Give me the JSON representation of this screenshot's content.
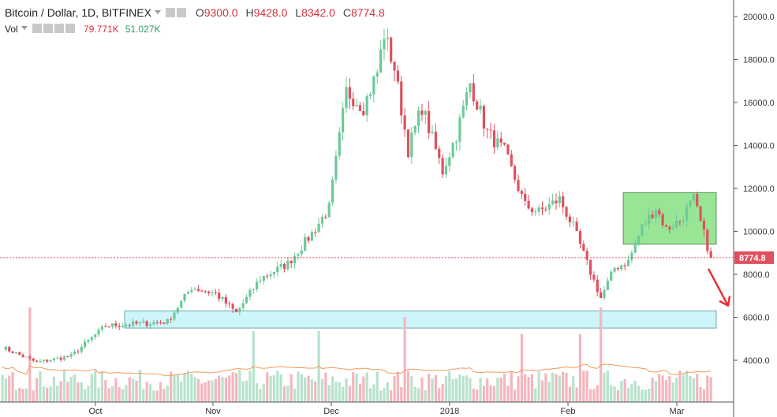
{
  "legend": {
    "title": "Bitcoin / Dollar, 1D, BITFINEX",
    "o_label": "O",
    "o_value": "9300.0",
    "h_label": "H",
    "h_value": "9428.0",
    "l_label": "L",
    "l_value": "8342.0",
    "c_label": "C",
    "c_value": "8774.8"
  },
  "volume_legend": {
    "label": "Vol",
    "value1": "79.771K",
    "value2": "51.027K"
  },
  "colors": {
    "up": "#6cc99a",
    "down": "#e0505e",
    "vol_up": "#b8e2cc",
    "vol_down": "#f4b6bd",
    "vol_ma": "#f29b5a",
    "last_price": "#e0505e",
    "support_zone": "#c8f4f9",
    "resistance_zone": "#7ee07a",
    "arrow": "#e8302f"
  },
  "chart_data": {
    "type": "candlestick",
    "symbol": "Bitcoin / Dollar",
    "interval": "1D",
    "exchange": "BITFINEX",
    "x_ticks": [
      "Oct",
      "Nov",
      "Dec",
      "2018",
      "Feb",
      "Mar"
    ],
    "y_ticks": [
      4000,
      6000,
      8000,
      10000,
      12000,
      14000,
      16000,
      18000,
      20000
    ],
    "ylim": [
      2800,
      20600
    ],
    "last_price": 8774.8,
    "last_price_label": "8774.8",
    "key_closes": [
      {
        "i": 0,
        "c": 4600
      },
      {
        "i": 10,
        "c": 3900
      },
      {
        "i": 20,
        "c": 4200
      },
      {
        "i": 30,
        "c": 5600
      },
      {
        "i": 40,
        "c": 5700
      },
      {
        "i": 48,
        "c": 5800
      },
      {
        "i": 55,
        "c": 7400
      },
      {
        "i": 62,
        "c": 7100
      },
      {
        "i": 68,
        "c": 6200
      },
      {
        "i": 75,
        "c": 7800
      },
      {
        "i": 83,
        "c": 8500
      },
      {
        "i": 90,
        "c": 9900
      },
      {
        "i": 95,
        "c": 11100
      },
      {
        "i": 100,
        "c": 16500
      },
      {
        "i": 105,
        "c": 15800
      },
      {
        "i": 109,
        "c": 17400
      },
      {
        "i": 111,
        "c": 19200
      },
      {
        "i": 114,
        "c": 17600
      },
      {
        "i": 118,
        "c": 13800
      },
      {
        "i": 122,
        "c": 15800
      },
      {
        "i": 128,
        "c": 12800
      },
      {
        "i": 132,
        "c": 14500
      },
      {
        "i": 136,
        "c": 16900
      },
      {
        "i": 141,
        "c": 14600
      },
      {
        "i": 146,
        "c": 13700
      },
      {
        "i": 152,
        "c": 11200
      },
      {
        "i": 156,
        "c": 10900
      },
      {
        "i": 162,
        "c": 11500
      },
      {
        "i": 166,
        "c": 10200
      },
      {
        "i": 170,
        "c": 8500
      },
      {
        "i": 174,
        "c": 6900
      },
      {
        "i": 178,
        "c": 8300
      },
      {
        "i": 182,
        "c": 8600
      },
      {
        "i": 186,
        "c": 10200
      },
      {
        "i": 190,
        "c": 11100
      },
      {
        "i": 193,
        "c": 10100
      },
      {
        "i": 197,
        "c": 10500
      },
      {
        "i": 201,
        "c": 11500
      },
      {
        "i": 205,
        "c": 9300
      },
      {
        "i": 206,
        "c": 8774.8
      }
    ],
    "volume_spikes": [
      {
        "i": 8,
        "v": 1.0
      },
      {
        "i": 73,
        "v": 0.75
      },
      {
        "i": 92,
        "v": 0.75
      },
      {
        "i": 117,
        "v": 0.9
      },
      {
        "i": 151,
        "v": 0.72
      },
      {
        "i": 168,
        "v": 0.72
      },
      {
        "i": 174,
        "v": 1.0
      }
    ],
    "annotations": [
      {
        "type": "zone",
        "name": "support",
        "x_from": 36,
        "x_to": 210,
        "y_from": 5500,
        "y_to": 6300
      },
      {
        "type": "zone",
        "name": "resistance",
        "x_from": 181,
        "x_to": 210,
        "y_from": 9400,
        "y_to": 11800
      },
      {
        "type": "arrow",
        "direction": "down",
        "from_value": 8700,
        "to_value": 6100
      }
    ]
  }
}
